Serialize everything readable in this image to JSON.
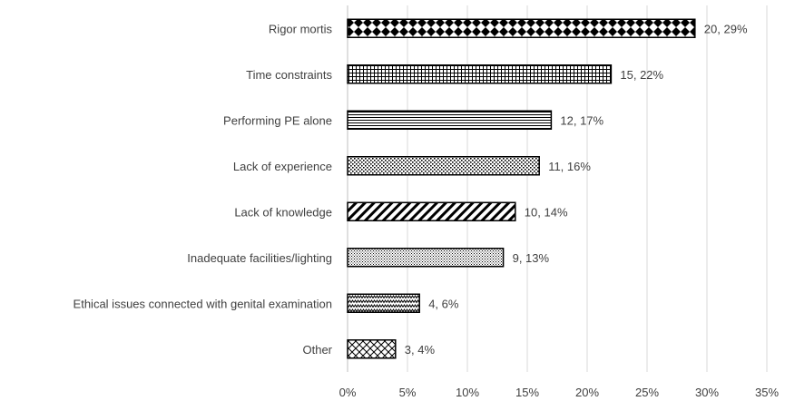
{
  "chart_data": {
    "type": "bar",
    "orientation": "horizontal",
    "categories": [
      "Rigor mortis",
      "Time constraints",
      "Performing PE alone",
      "Lack of experience",
      "Lack of knowledge",
      "Inadequate facilities/lighting",
      "Ethical issues connected with genital examination",
      "Other"
    ],
    "values": [
      29,
      22,
      17,
      16,
      14,
      13,
      6,
      4
    ],
    "counts": [
      20,
      15,
      12,
      11,
      10,
      9,
      4,
      3
    ],
    "data_labels": [
      "20, 29%",
      "15, 22%",
      "12, 17%",
      "11, 16%",
      "10, 14%",
      "9, 13%",
      "4, 6%",
      "3, 4%"
    ],
    "patterns": [
      "diamonds",
      "grid",
      "horizontal-lines",
      "dots-dense",
      "diagonal-stripes",
      "dots-fine",
      "zigzag",
      "cross-hatch"
    ],
    "xlim": [
      0,
      35
    ],
    "xticks": [
      0,
      5,
      10,
      15,
      20,
      25,
      30,
      35
    ],
    "xtick_labels": [
      "0%",
      "5%",
      "10%",
      "15%",
      "20%",
      "25%",
      "30%",
      "35%"
    ],
    "grid": true,
    "legend": false,
    "colors": {
      "bar_stroke": "#000000",
      "gridline": "#d9d9d9",
      "text": "#404040"
    }
  }
}
